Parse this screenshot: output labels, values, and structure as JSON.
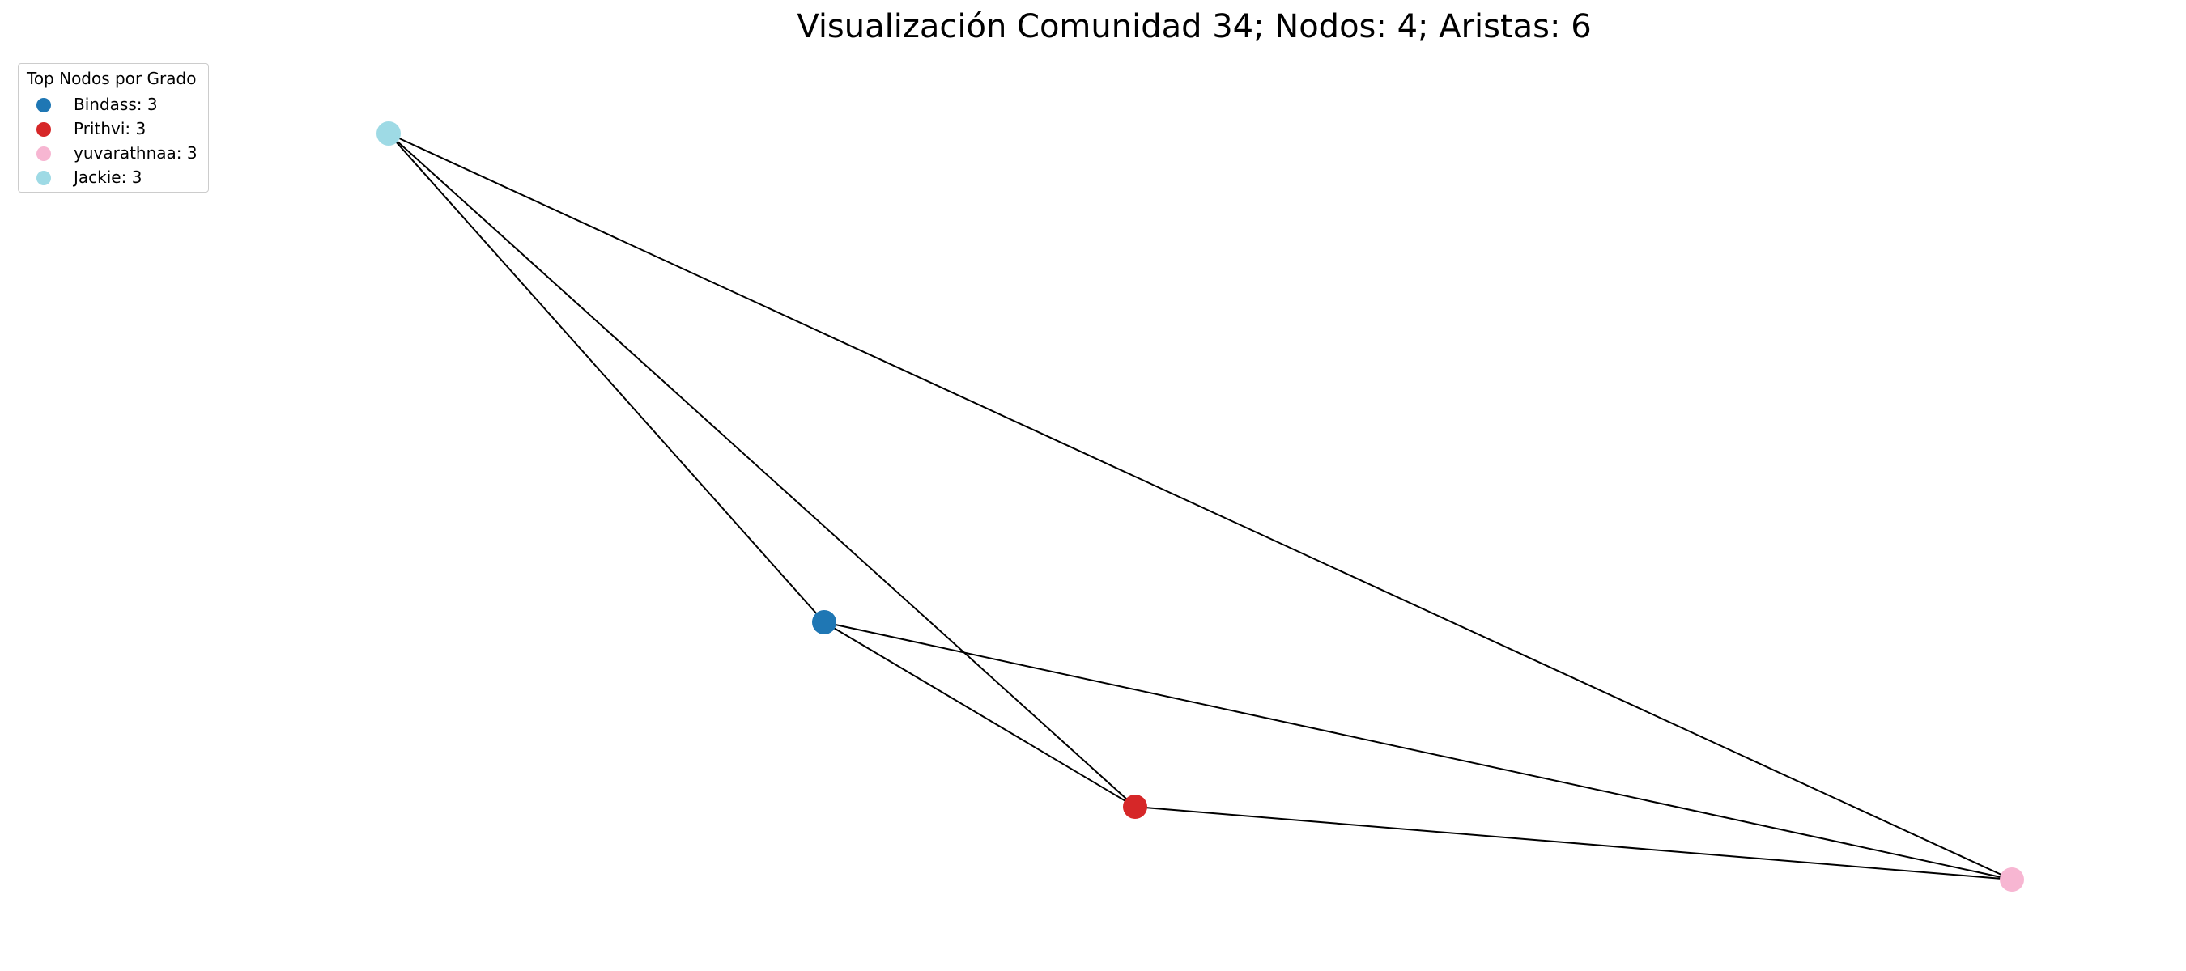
{
  "figure": {
    "title": "Visualización Comunidad 34; Nodos: 4; Aristas: 6"
  },
  "legend": {
    "title": "Top Nodos por Grado",
    "placement": "top-left",
    "entries": [
      {
        "label": "Bindass: 3",
        "color": "#1f77b4"
      },
      {
        "label": "Prithvi: 3",
        "color": "#d62728"
      },
      {
        "label": "yuvarathnaa: 3",
        "color": "#f7b6d2"
      },
      {
        "label": "Jackie: 3",
        "color": "#9edae5"
      }
    ]
  },
  "graph": {
    "nodes": [
      {
        "id": "Bindass",
        "degree": 3,
        "color": "#1f77b4"
      },
      {
        "id": "Prithvi",
        "degree": 3,
        "color": "#d62728"
      },
      {
        "id": "yuvarathnaa",
        "degree": 3,
        "color": "#f7b6d2"
      },
      {
        "id": "Jackie",
        "degree": 3,
        "color": "#9edae5"
      }
    ],
    "edges": [
      {
        "source": "Jackie",
        "target": "Bindass"
      },
      {
        "source": "Jackie",
        "target": "Prithvi"
      },
      {
        "source": "Jackie",
        "target": "yuvarathnaa"
      },
      {
        "source": "Bindass",
        "target": "Prithvi"
      },
      {
        "source": "Bindass",
        "target": "yuvarathnaa"
      },
      {
        "source": "Prithvi",
        "target": "yuvarathnaa"
      }
    ],
    "edge_color": "#000000"
  }
}
